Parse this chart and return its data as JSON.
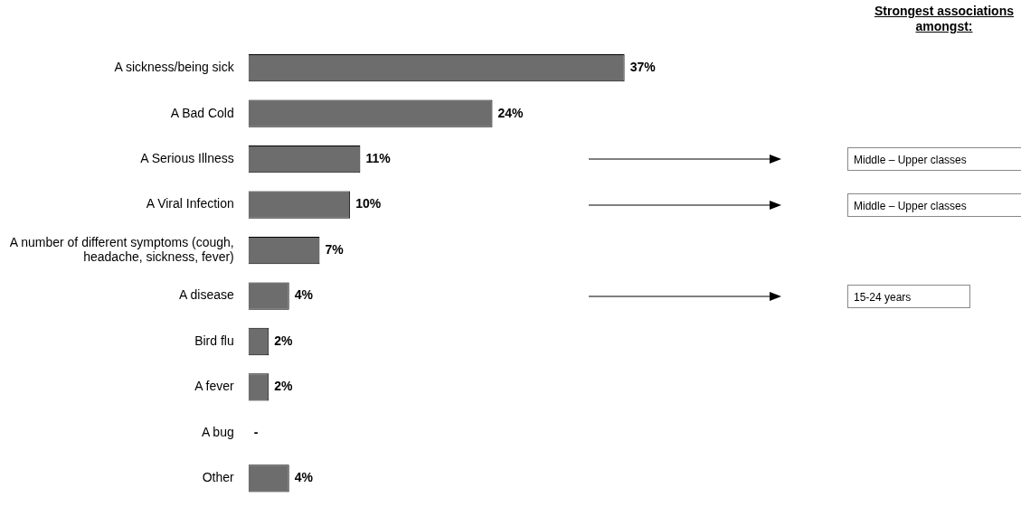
{
  "chart_data": {
    "type": "bar",
    "orientation": "horizontal",
    "categories": [
      "A sickness/being sick",
      "A Bad Cold",
      "A Serious Illness",
      "A Viral Infection",
      "A number of different symptoms (cough, headache, sickness, fever)",
      "A disease",
      "Bird flu",
      "A fever",
      "A bug",
      "Other"
    ],
    "values": [
      37,
      24,
      11,
      10,
      7,
      4,
      2,
      2,
      0,
      4
    ],
    "value_labels": [
      "37%",
      "24%",
      "11%",
      "10%",
      "7%",
      "4%",
      "2%",
      "2%",
      "-",
      "4%"
    ],
    "color": "#6d6d6d",
    "xlim": [
      0,
      76
    ],
    "tick_labels": "y",
    "grid": false,
    "legend": false,
    "annotations": [
      "Strongest associations amongst:",
      "Middle – Upper classes",
      "Middle – Upper classes",
      "15-24 years"
    ]
  }
}
